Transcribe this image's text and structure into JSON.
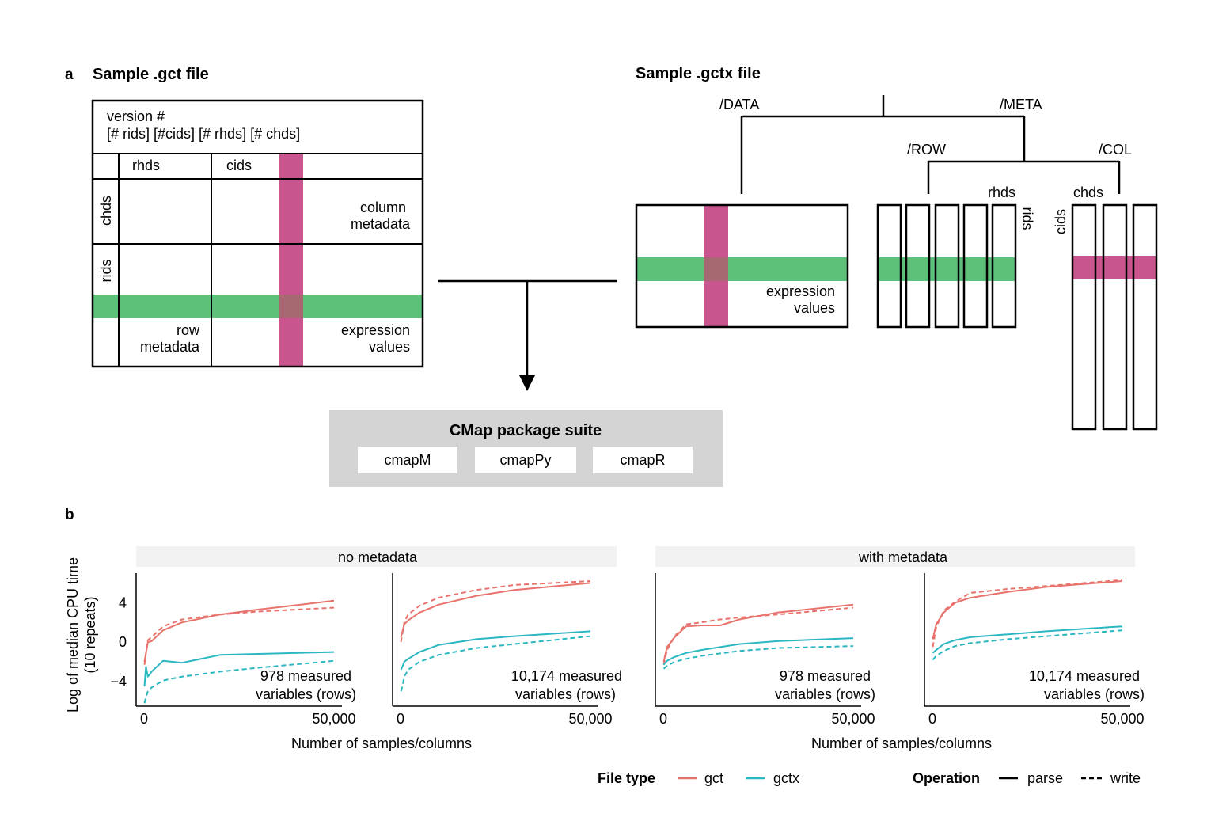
{
  "panel_a": {
    "letter": "a",
    "gct": {
      "title": "Sample .gct file",
      "header_line1": "version #",
      "header_line2": "[# rids] [#cids] [# rhds] [# chds]",
      "rhds": "rhds",
      "cids": "cids",
      "chds": "chds",
      "rids": "rids",
      "col_meta_1": "column",
      "col_meta_2": "metadata",
      "row_meta_1": "row",
      "row_meta_2": "metadata",
      "expr_1": "expression",
      "expr_2": "values"
    },
    "gctx": {
      "title": "Sample .gctx file",
      "data_label": "/DATA",
      "meta_label": "/META",
      "row_label": "/ROW",
      "col_label": "/COL",
      "rhds": "rhds",
      "rids": "rids",
      "chds": "chds",
      "cids": "cids",
      "expr_1": "expression",
      "expr_2": "values"
    },
    "suite": {
      "title": "CMap package suite",
      "packages": [
        "cmapM",
        "cmapPy",
        "cmapR"
      ]
    },
    "colors": {
      "row_highlight": "#5dc17a",
      "col_highlight": "#c9558f",
      "suite_bg": "#d4d4d4"
    }
  },
  "panel_b": {
    "letter": "b",
    "ylabel_line1": "Log of median CPU time",
    "ylabel_line2": "(10 repeats)",
    "xlabel": "Number of samples/columns",
    "legend": {
      "file_type_title": "File type",
      "gct": "gct",
      "gctx": "gctx",
      "operation_title": "Operation",
      "parse": "parse",
      "write": "write"
    },
    "colors": {
      "gct": "#e8736d",
      "gctx": "#2ab7c1",
      "strip": "#f2f2f2"
    }
  },
  "chart_data": [
    {
      "type": "line",
      "strip": "no metadata",
      "annotation_1": "978 measured",
      "annotation_2": "variables (rows)",
      "xlim": [
        0,
        50000
      ],
      "ylim": [
        -6.5,
        7
      ],
      "xticks": [
        0,
        50000
      ],
      "xtick_labels": [
        "0",
        "50,000"
      ],
      "yticks": [
        4,
        0,
        -4
      ],
      "ytick_labels": [
        "4",
        "0",
        "−4"
      ],
      "series": [
        {
          "name": "gct parse",
          "x": [
            100,
            1000,
            2000,
            5000,
            10000,
            20000,
            30000,
            50000
          ],
          "y": [
            -2,
            0,
            0.1,
            1.2,
            2.0,
            2.8,
            3.3,
            4.2
          ]
        },
        {
          "name": "gct write",
          "x": [
            100,
            1000,
            2000,
            5000,
            10000,
            20000,
            30000,
            50000
          ],
          "y": [
            -2.3,
            0.2,
            0.5,
            1.6,
            2.3,
            2.8,
            3.1,
            3.5
          ]
        },
        {
          "name": "gctx parse",
          "x": [
            100,
            500,
            1000,
            2000,
            5000,
            10000,
            20000,
            30000,
            50000
          ],
          "y": [
            -4.5,
            -2.5,
            -3.5,
            -3.0,
            -1.9,
            -2.1,
            -1.3,
            -1.2,
            -1.0
          ]
        },
        {
          "name": "gctx write",
          "x": [
            100,
            500,
            1000,
            2000,
            5000,
            10000,
            20000,
            30000,
            50000
          ],
          "y": [
            -6.2,
            -5.6,
            -5.0,
            -4.6,
            -3.9,
            -3.5,
            -3.0,
            -2.6,
            -1.9
          ]
        }
      ]
    },
    {
      "type": "line",
      "strip": "no metadata",
      "annotation_1": "10,174 measured",
      "annotation_2": "variables (rows)",
      "xlim": [
        0,
        50000
      ],
      "ylim": [
        -6.5,
        7
      ],
      "xticks": [
        0,
        50000
      ],
      "xtick_labels": [
        "0",
        "50,000"
      ],
      "series": [
        {
          "name": "gct parse",
          "x": [
            100,
            1000,
            2000,
            5000,
            10000,
            20000,
            30000,
            50000
          ],
          "y": [
            0.5,
            1.8,
            2.2,
            3.0,
            3.8,
            4.7,
            5.3,
            6.0
          ]
        },
        {
          "name": "gct write",
          "x": [
            100,
            1000,
            2000,
            5000,
            10000,
            20000,
            30000,
            50000
          ],
          "y": [
            0,
            2.0,
            2.8,
            3.7,
            4.5,
            5.3,
            5.8,
            6.2
          ]
        },
        {
          "name": "gctx parse",
          "x": [
            100,
            500,
            1000,
            2000,
            5000,
            10000,
            20000,
            30000,
            50000
          ],
          "y": [
            -2.8,
            -2.5,
            -2.0,
            -1.7,
            -1.0,
            -0.3,
            0.3,
            0.6,
            1.1
          ]
        },
        {
          "name": "gctx write",
          "x": [
            100,
            500,
            1000,
            2000,
            5000,
            10000,
            20000,
            30000,
            50000
          ],
          "y": [
            -5.0,
            -4.5,
            -3.5,
            -2.8,
            -2.0,
            -1.3,
            -0.6,
            -0.2,
            0.6
          ]
        }
      ]
    },
    {
      "type": "line",
      "strip": "with metadata",
      "annotation_1": "978 measured",
      "annotation_2": "variables (rows)",
      "xlim": [
        0,
        50000
      ],
      "ylim": [
        -6.5,
        7
      ],
      "xticks": [
        0,
        50000
      ],
      "xtick_labels": [
        "0",
        "50,000"
      ],
      "series": [
        {
          "name": "gct parse",
          "x": [
            100,
            1000,
            3000,
            6000,
            10000,
            15000,
            20000,
            30000,
            50000
          ],
          "y": [
            -2.0,
            -0.5,
            0.5,
            1.6,
            1.7,
            1.7,
            2.3,
            3.0,
            3.8
          ]
        },
        {
          "name": "gct write",
          "x": [
            100,
            1000,
            3000,
            6000,
            10000,
            15000,
            20000,
            30000,
            50000
          ],
          "y": [
            -2.3,
            -0.8,
            0.6,
            1.8,
            2.0,
            2.3,
            2.5,
            2.8,
            3.5
          ]
        },
        {
          "name": "gctx parse",
          "x": [
            100,
            1000,
            3000,
            6000,
            10000,
            20000,
            30000,
            50000
          ],
          "y": [
            -2.3,
            -1.9,
            -1.5,
            -1.1,
            -0.8,
            -0.2,
            0.1,
            0.4
          ]
        },
        {
          "name": "gctx write",
          "x": [
            100,
            1000,
            3000,
            6000,
            10000,
            20000,
            30000,
            50000
          ],
          "y": [
            -2.7,
            -2.4,
            -2.0,
            -1.7,
            -1.4,
            -0.9,
            -0.6,
            -0.4
          ]
        }
      ]
    },
    {
      "type": "line",
      "strip": "with metadata",
      "annotation_1": "10,174 measured",
      "annotation_2": "variables (rows)",
      "xlim": [
        0,
        50000
      ],
      "ylim": [
        -6.5,
        7
      ],
      "xticks": [
        0,
        50000
      ],
      "xtick_labels": [
        "0",
        "50,000"
      ],
      "series": [
        {
          "name": "gct parse",
          "x": [
            100,
            1000,
            3000,
            6000,
            10000,
            20000,
            30000,
            50000
          ],
          "y": [
            0.3,
            1.8,
            3.0,
            4.0,
            4.5,
            5.1,
            5.6,
            6.2
          ]
        },
        {
          "name": "gct write",
          "x": [
            100,
            1000,
            3000,
            6000,
            10000,
            20000,
            30000,
            50000
          ],
          "y": [
            -0.5,
            1.5,
            3.2,
            4.1,
            5.0,
            5.4,
            5.7,
            6.3
          ]
        },
        {
          "name": "gctx parse",
          "x": [
            100,
            1000,
            3000,
            6000,
            10000,
            20000,
            30000,
            50000
          ],
          "y": [
            -1.1,
            -0.8,
            -0.2,
            0.2,
            0.5,
            0.8,
            1.1,
            1.6
          ]
        },
        {
          "name": "gctx write",
          "x": [
            100,
            1000,
            3000,
            6000,
            10000,
            20000,
            30000,
            50000
          ],
          "y": [
            -1.8,
            -1.4,
            -0.9,
            -0.4,
            -0.1,
            0.3,
            0.6,
            1.2
          ]
        }
      ]
    }
  ]
}
